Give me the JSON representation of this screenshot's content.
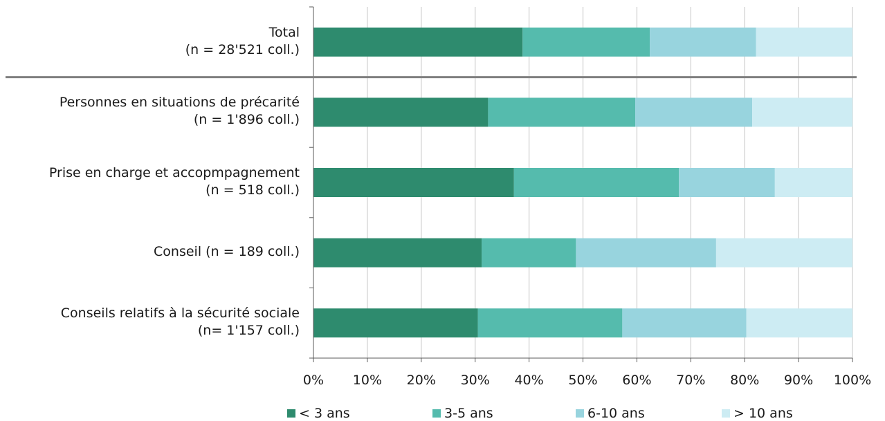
{
  "chart_data": {
    "type": "bar",
    "orientation": "horizontal",
    "stacked": true,
    "percent": true,
    "categories": [
      {
        "line1": "Total",
        "line2": "(n = 28'521 coll.)"
      },
      {
        "line1": "Personnes en situations de précarité",
        "line2": "(n = 1'896 coll.)"
      },
      {
        "line1": "Prise en charge et accopmpagnement",
        "line2": "(n = 518 coll.)"
      },
      {
        "line1": "Conseil (n = 189 coll.)",
        "line2": ""
      },
      {
        "line1": "Conseils relatifs à la sécurité sociale",
        "line2": "(n= 1'157 coll.)"
      }
    ],
    "series": [
      {
        "name": "< 3 ans",
        "color": "#2e8b6e",
        "values": [
          38.8,
          32.4,
          37.2,
          31.2,
          30.5
        ]
      },
      {
        "name": "3-5 ans",
        "color": "#55bbad",
        "values": [
          23.6,
          27.3,
          30.6,
          17.5,
          26.8
        ]
      },
      {
        "name": "6-10 ans",
        "color": "#98d4de",
        "values": [
          19.7,
          21.7,
          17.8,
          26.0,
          23.0
        ]
      },
      {
        "name": "> 10 ans",
        "color": "#cdecf3",
        "values": [
          17.9,
          18.6,
          14.4,
          25.3,
          19.7
        ]
      }
    ],
    "xlim": [
      0,
      100
    ],
    "xticks": [
      "0%",
      "10%",
      "20%",
      "30%",
      "40%",
      "50%",
      "60%",
      "70%",
      "80%",
      "90%",
      "100%"
    ],
    "grid": true,
    "legend": "bottom",
    "separator_after_category": 0,
    "separator_color": "#808080",
    "gridline_color": "#d9d9d9",
    "axis_color": "#595959",
    "title": "",
    "xlabel": "",
    "ylabel": ""
  }
}
